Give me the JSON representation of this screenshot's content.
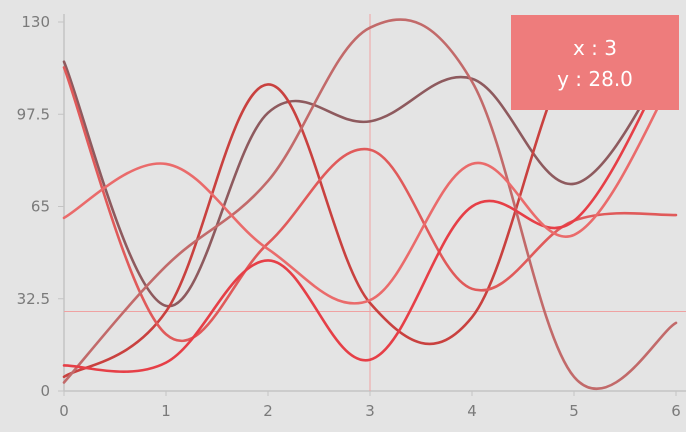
{
  "chart_data": {
    "type": "line",
    "title": "",
    "xlabel": "",
    "ylabel": "",
    "x": [
      0,
      1,
      2,
      3,
      4,
      5,
      6
    ],
    "xlim": [
      0,
      6
    ],
    "ylim": [
      0,
      130
    ],
    "x_ticks": [
      "0",
      "1",
      "2",
      "3",
      "4",
      "5",
      "6"
    ],
    "y_ticks": [
      "0",
      "32.5",
      "65",
      "97.5",
      "130"
    ],
    "grid": false,
    "legend": "none",
    "series": [
      {
        "color": "#8e5a5e",
        "values": [
          116,
          30,
          98,
          95,
          110,
          73,
          122
        ]
      },
      {
        "color": "#c9413f",
        "values": [
          5,
          28,
          108,
          31,
          26,
          120,
          126
        ]
      },
      {
        "color": "#e05a5a",
        "values": [
          114,
          20,
          52,
          85,
          36,
          60,
          62
        ]
      },
      {
        "color": "#c26a6a",
        "values": [
          3,
          44,
          74,
          128,
          109,
          5,
          24
        ]
      },
      {
        "color": "#e63f47",
        "values": [
          9,
          10,
          46,
          11,
          65,
          60,
          122
        ]
      },
      {
        "color": "#ea6b6b",
        "values": [
          61,
          80,
          50,
          32,
          80,
          55,
          112
        ]
      }
    ],
    "crosshair": {
      "x": 3,
      "y": 28.0
    },
    "tooltip": {
      "line1": "x : 3",
      "line2": "y : 28.0",
      "color": "#ee7c7c"
    },
    "crosshair_color": "#efa2a2",
    "axis_color": "#c4c4c4"
  }
}
